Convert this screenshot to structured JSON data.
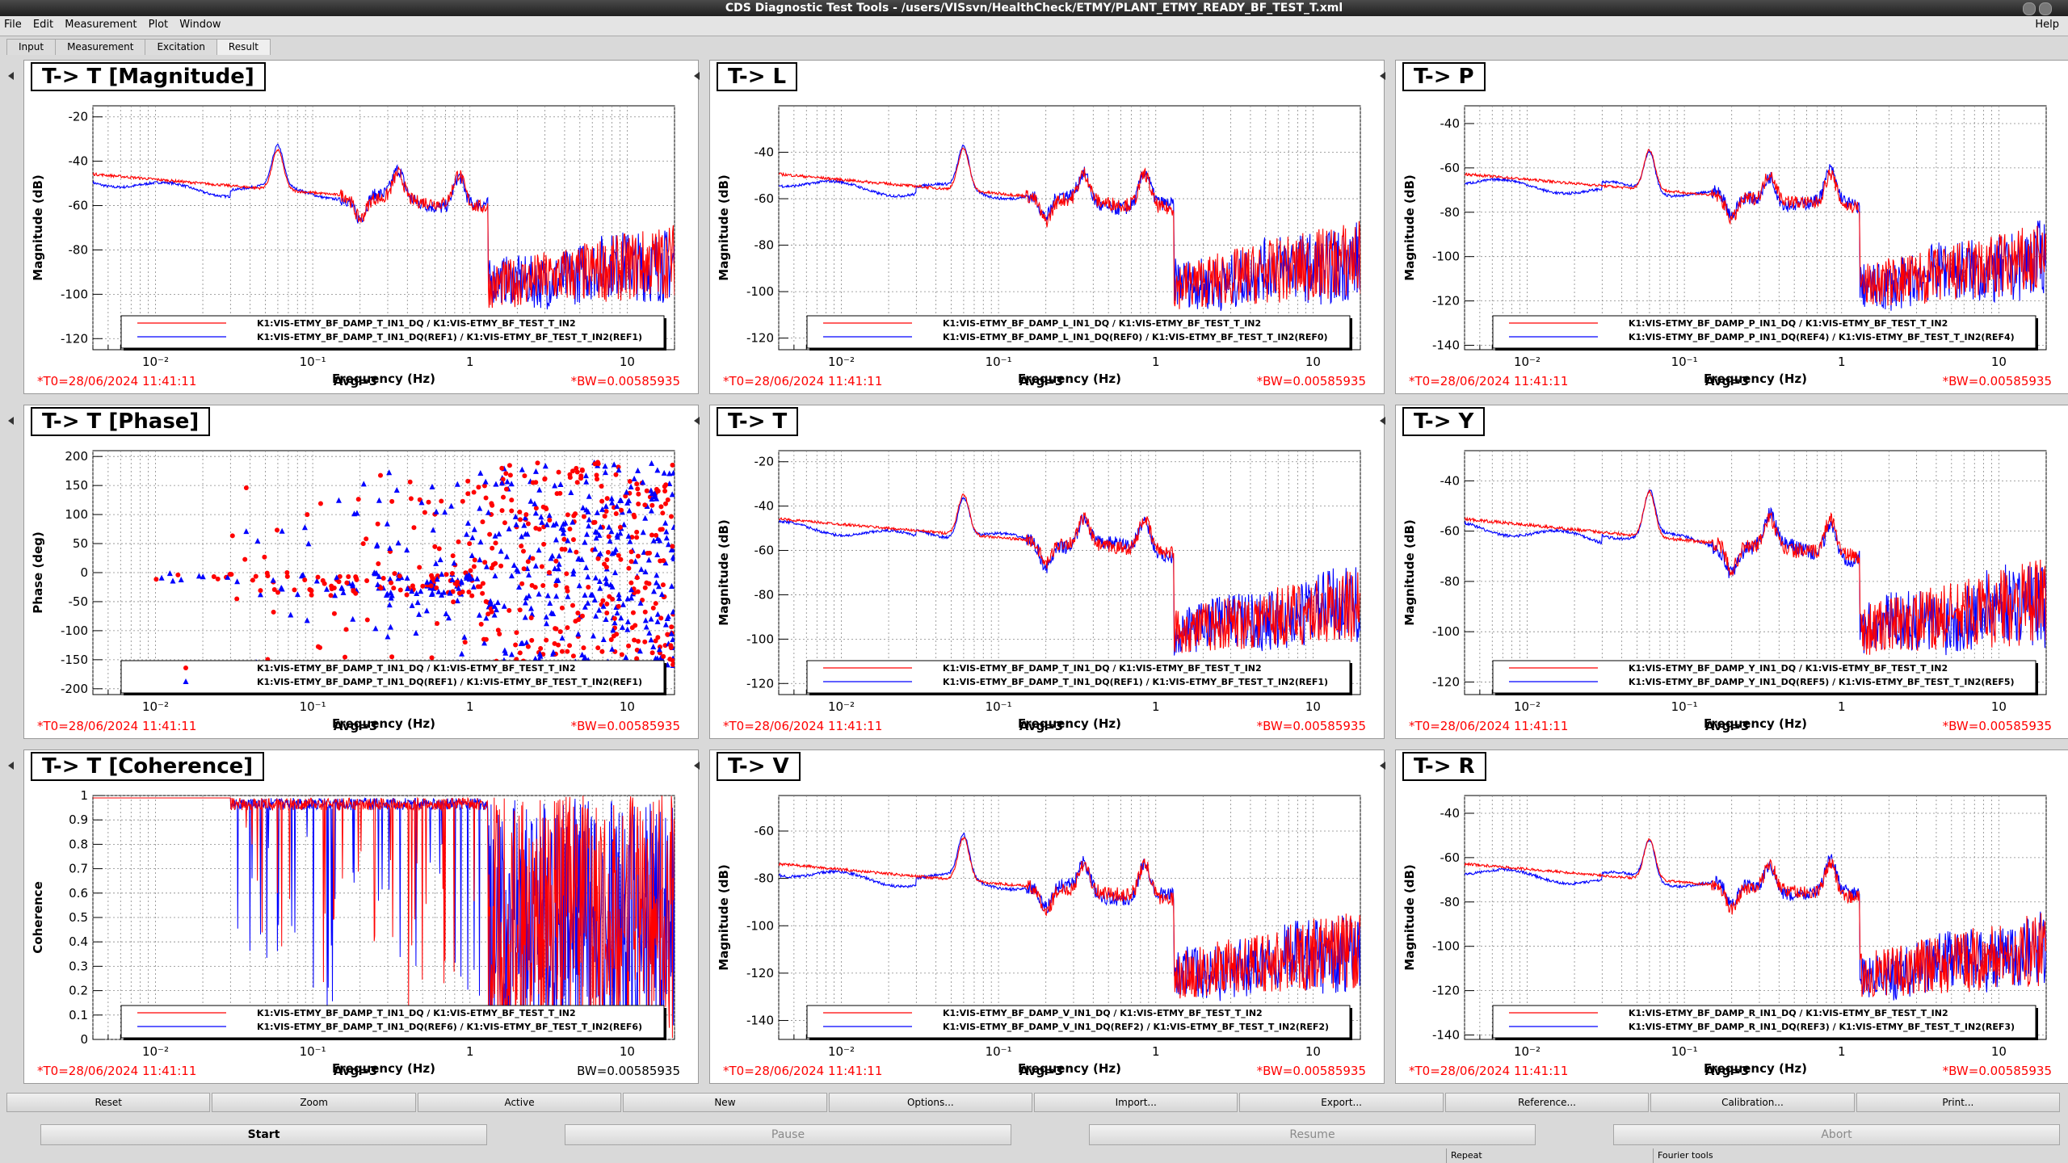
{
  "window": {
    "title": "CDS Diagnostic Test Tools - /users/VISsvn/HealthCheck/ETMY/PLANT_ETMY_READY_BF_TEST_T.xml"
  },
  "menu": {
    "items": [
      "File",
      "Edit",
      "Measurement",
      "Plot",
      "Window"
    ],
    "help": "Help"
  },
  "tabs": [
    "Input",
    "Measurement",
    "Excitation",
    "Result"
  ],
  "active_tab": "Result",
  "panels": [
    {
      "title": "T-> T [Magnitude]",
      "type": "mag",
      "ylabel": "Magnitude (dB)",
      "yticks": [
        -20,
        -40,
        -60,
        -80,
        -100,
        -120
      ],
      "ymin": -125,
      "ymax": -15,
      "legend": [
        "K1:VIS-ETMY_BF_DAMP_T_IN1_DQ / K1:VIS-ETMY_BF_TEST_T_IN2",
        "K1:VIS-ETMY_BF_DAMP_T_IN1_DQ(REF1) / K1:VIS-ETMY_BF_TEST_T_IN2(REF1)"
      ],
      "t0": "*T0=28/06/2024 11:41:11",
      "avg": "Avg=3",
      "bw": "*BW=0.00585935"
    },
    {
      "title": "T-> L",
      "type": "mag",
      "ylabel": "Magnitude (dB)",
      "yticks": [
        -40,
        -60,
        -80,
        -100,
        -120
      ],
      "ymin": -125,
      "ymax": -20,
      "legend": [
        "K1:VIS-ETMY_BF_DAMP_L_IN1_DQ / K1:VIS-ETMY_BF_TEST_T_IN2",
        "K1:VIS-ETMY_BF_DAMP_L_IN1_DQ(REF0) / K1:VIS-ETMY_BF_TEST_T_IN2(REF0)"
      ],
      "t0": "*T0=28/06/2024 11:41:11",
      "avg": "Avg=3",
      "bw": "*BW=0.00585935"
    },
    {
      "title": "T-> P",
      "type": "mag",
      "ylabel": "Magnitude (dB)",
      "yticks": [
        -40,
        -60,
        -80,
        -100,
        -120,
        -140
      ],
      "ymin": -142,
      "ymax": -32,
      "legend": [
        "K1:VIS-ETMY_BF_DAMP_P_IN1_DQ / K1:VIS-ETMY_BF_TEST_T_IN2",
        "K1:VIS-ETMY_BF_DAMP_P_IN1_DQ(REF4) / K1:VIS-ETMY_BF_TEST_T_IN2(REF4)"
      ],
      "t0": "*T0=28/06/2024 11:41:11",
      "avg": "Avg=3",
      "bw": "*BW=0.00585935"
    },
    {
      "title": "T-> T [Phase]",
      "type": "phase",
      "ylabel": "Phase (deg)",
      "yticks": [
        200,
        150,
        100,
        50,
        0,
        -50,
        -100,
        -150,
        -200
      ],
      "ymin": -210,
      "ymax": 210,
      "legend": [
        "K1:VIS-ETMY_BF_DAMP_T_IN1_DQ / K1:VIS-ETMY_BF_TEST_T_IN2",
        "K1:VIS-ETMY_BF_DAMP_T_IN1_DQ(REF1) / K1:VIS-ETMY_BF_TEST_T_IN2(REF1)"
      ],
      "t0": "*T0=28/06/2024 11:41:11",
      "avg": "Avg=3",
      "bw": "*BW=0.00585935"
    },
    {
      "title": "T-> T",
      "type": "mag",
      "ylabel": "Magnitude (dB)",
      "yticks": [
        -20,
        -40,
        -60,
        -80,
        -100,
        -120
      ],
      "ymin": -125,
      "ymax": -15,
      "legend": [
        "K1:VIS-ETMY_BF_DAMP_T_IN1_DQ / K1:VIS-ETMY_BF_TEST_T_IN2",
        "K1:VIS-ETMY_BF_DAMP_T_IN1_DQ(REF1) / K1:VIS-ETMY_BF_TEST_T_IN2(REF1)"
      ],
      "t0": "*T0=28/06/2024 11:41:11",
      "avg": "Avg=3",
      "bw": "*BW=0.00585935"
    },
    {
      "title": "T-> Y",
      "type": "mag",
      "ylabel": "Magnitude (dB)",
      "yticks": [
        -40,
        -60,
        -80,
        -100,
        -120
      ],
      "ymin": -125,
      "ymax": -28,
      "legend": [
        "K1:VIS-ETMY_BF_DAMP_Y_IN1_DQ / K1:VIS-ETMY_BF_TEST_T_IN2",
        "K1:VIS-ETMY_BF_DAMP_Y_IN1_DQ(REF5) / K1:VIS-ETMY_BF_TEST_T_IN2(REF5)"
      ],
      "t0": "*T0=28/06/2024 11:41:11",
      "avg": "Avg=3",
      "bw": "*BW=0.00585935"
    },
    {
      "title": "T-> T [Coherence]",
      "type": "coh",
      "ylabel": "Coherence",
      "yticks": [
        1,
        0.9,
        0.8,
        0.7,
        0.6,
        0.5,
        0.4,
        0.3,
        0.2,
        0.1,
        0
      ],
      "ymin": 0,
      "ymax": 1,
      "legend": [
        "K1:VIS-ETMY_BF_DAMP_T_IN1_DQ / K1:VIS-ETMY_BF_TEST_T_IN2",
        "K1:VIS-ETMY_BF_DAMP_T_IN1_DQ(REF6) / K1:VIS-ETMY_BF_TEST_T_IN2(REF6)"
      ],
      "t0": "*T0=28/06/2024 11:41:11",
      "avg": "Avg=3",
      "bw": "BW=0.00585935"
    },
    {
      "title": "T-> V",
      "type": "mag",
      "ylabel": "Magnitude (dB)",
      "yticks": [
        -60,
        -80,
        -100,
        -120,
        -140
      ],
      "ymin": -148,
      "ymax": -45,
      "legend": [
        "K1:VIS-ETMY_BF_DAMP_V_IN1_DQ / K1:VIS-ETMY_BF_TEST_T_IN2",
        "K1:VIS-ETMY_BF_DAMP_V_IN1_DQ(REF2) / K1:VIS-ETMY_BF_TEST_T_IN2(REF2)"
      ],
      "t0": "*T0=28/06/2024 11:41:11",
      "avg": "Avg=3",
      "bw": "*BW=0.00585935"
    },
    {
      "title": "T-> R",
      "type": "mag",
      "ylabel": "Magnitude (dB)",
      "yticks": [
        -40,
        -60,
        -80,
        -100,
        -120,
        -140
      ],
      "ymin": -142,
      "ymax": -32,
      "legend": [
        "K1:VIS-ETMY_BF_DAMP_R_IN1_DQ / K1:VIS-ETMY_BF_TEST_T_IN2",
        "K1:VIS-ETMY_BF_DAMP_R_IN1_DQ(REF3) / K1:VIS-ETMY_BF_TEST_T_IN2(REF3)"
      ],
      "t0": "*T0=28/06/2024 11:41:11",
      "avg": "Avg=3",
      "bw": "*BW=0.00585935"
    }
  ],
  "xaxis": {
    "label": "Frequency (Hz)",
    "ticks": [
      "10⁻²",
      "10⁻¹",
      "1",
      "10"
    ],
    "xmin": 0.004,
    "xmax": 20,
    "scale": "log"
  },
  "colors": {
    "current": "#ff0000",
    "reference": "#0000ff",
    "t0_text": "#ff0000"
  },
  "toolbar": [
    "Reset",
    "Zoom",
    "Active",
    "New",
    "Options...",
    "Import...",
    "Export...",
    "Reference...",
    "Calibration...",
    "Print..."
  ],
  "bottom_buttons": [
    "Start",
    "Pause",
    "Resume",
    "Abort"
  ],
  "statusbar": {
    "repeat": "Repeat",
    "fourier": "Fourier tools"
  }
}
